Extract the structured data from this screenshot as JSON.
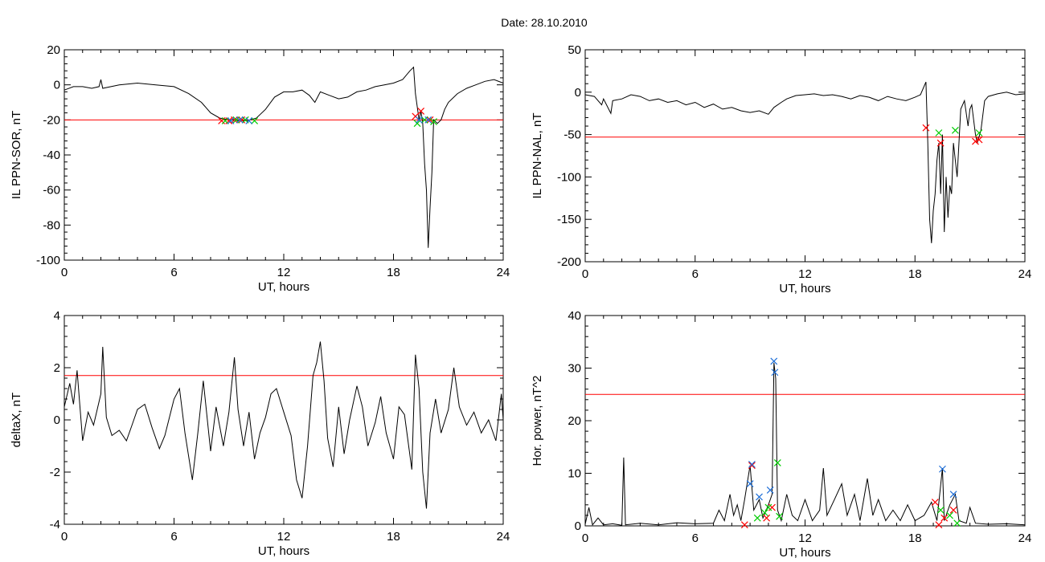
{
  "figure": {
    "title": "Date:  28.10.2010",
    "threshold_color": "#ff0000",
    "trace_color": "#000000",
    "marker_colors": {
      "red": "#ff0000",
      "green": "#00cc00",
      "blue": "#1f6fd8"
    }
  },
  "chart_data": [
    {
      "type": "line",
      "xlabel": "UT, hours",
      "ylabel": "IL PPN-SOR, nT",
      "xlim": [
        0,
        24
      ],
      "ylim": [
        -100,
        20
      ],
      "xticks": [
        0,
        6,
        12,
        18,
        24
      ],
      "yticks": [
        20,
        0,
        -20,
        -40,
        -60,
        -80,
        -100
      ],
      "threshold": -20,
      "trace": [
        [
          0,
          -3
        ],
        [
          0.5,
          -1
        ],
        [
          1,
          -1
        ],
        [
          1.5,
          -2
        ],
        [
          1.9,
          -1
        ],
        [
          2,
          3
        ],
        [
          2.1,
          -2
        ],
        [
          3,
          0
        ],
        [
          4,
          1
        ],
        [
          5,
          0
        ],
        [
          6,
          -1
        ],
        [
          6.8,
          -5
        ],
        [
          7.5,
          -10
        ],
        [
          8,
          -16
        ],
        [
          8.5,
          -19
        ],
        [
          9,
          -20
        ],
        [
          10,
          -20.5
        ],
        [
          10.5,
          -19
        ],
        [
          11,
          -14
        ],
        [
          11.5,
          -7
        ],
        [
          12,
          -4
        ],
        [
          12.5,
          -4
        ],
        [
          13,
          -3
        ],
        [
          13.4,
          -6
        ],
        [
          13.7,
          -10
        ],
        [
          14,
          -4
        ],
        [
          14.5,
          -6
        ],
        [
          15,
          -8
        ],
        [
          15.5,
          -7
        ],
        [
          16,
          -4
        ],
        [
          16.5,
          -3
        ],
        [
          17,
          -1
        ],
        [
          17.5,
          0
        ],
        [
          18,
          1
        ],
        [
          18.5,
          3
        ],
        [
          18.9,
          8
        ],
        [
          19.1,
          10
        ],
        [
          19.2,
          -5
        ],
        [
          19.4,
          -20
        ],
        [
          19.5,
          -15
        ],
        [
          19.6,
          -22
        ],
        [
          19.7,
          -45
        ],
        [
          19.8,
          -60
        ],
        [
          19.9,
          -93
        ],
        [
          20,
          -70
        ],
        [
          20.1,
          -50
        ],
        [
          20.2,
          -20
        ],
        [
          20.4,
          -22
        ],
        [
          20.6,
          -20
        ],
        [
          20.8,
          -14
        ],
        [
          21,
          -10
        ],
        [
          21.5,
          -5
        ],
        [
          22,
          -2
        ],
        [
          22.5,
          0
        ],
        [
          23,
          2
        ],
        [
          23.5,
          3
        ],
        [
          24,
          1
        ]
      ],
      "markers": {
        "red": [
          [
            8.6,
            -20.5
          ],
          [
            9,
            -20.5
          ],
          [
            9.3,
            -20
          ],
          [
            9.7,
            -20
          ],
          [
            19.2,
            -18
          ],
          [
            19.5,
            -15
          ],
          [
            20,
            -20
          ]
        ],
        "green": [
          [
            8.8,
            -20.5
          ],
          [
            9.4,
            -20
          ],
          [
            9.9,
            -20
          ],
          [
            10.4,
            -20.5
          ],
          [
            19.3,
            -22
          ],
          [
            19.7,
            -20
          ],
          [
            20.2,
            -21
          ]
        ],
        "blue": [
          [
            9.1,
            -20.5
          ],
          [
            9.6,
            -20
          ],
          [
            10.1,
            -20.5
          ],
          [
            19.4,
            -20
          ],
          [
            19.9,
            -20
          ]
        ]
      }
    },
    {
      "type": "line",
      "xlabel": "UT, hours",
      "ylabel": "IL PPN-NAL, nT",
      "xlim": [
        0,
        24
      ],
      "ylim": [
        -200,
        50
      ],
      "xticks": [
        0,
        6,
        12,
        18,
        24
      ],
      "yticks": [
        50,
        0,
        -50,
        -100,
        -150,
        -200
      ],
      "threshold": -53,
      "trace": [
        [
          0,
          -3
        ],
        [
          0.5,
          -5
        ],
        [
          0.9,
          -15
        ],
        [
          1,
          -8
        ],
        [
          1.4,
          -25
        ],
        [
          1.5,
          -10
        ],
        [
          2,
          -8
        ],
        [
          2.5,
          -3
        ],
        [
          3,
          -5
        ],
        [
          3.5,
          -10
        ],
        [
          4,
          -8
        ],
        [
          4.5,
          -12
        ],
        [
          5,
          -10
        ],
        [
          5.5,
          -15
        ],
        [
          6,
          -12
        ],
        [
          6.5,
          -18
        ],
        [
          7,
          -14
        ],
        [
          7.5,
          -20
        ],
        [
          8,
          -18
        ],
        [
          8.5,
          -22
        ],
        [
          9,
          -24
        ],
        [
          9.5,
          -22
        ],
        [
          10,
          -26
        ],
        [
          10.3,
          -18
        ],
        [
          10.7,
          -12
        ],
        [
          11,
          -8
        ],
        [
          11.5,
          -4
        ],
        [
          12,
          -3
        ],
        [
          12.5,
          -2
        ],
        [
          13,
          -4
        ],
        [
          13.5,
          -3
        ],
        [
          14,
          -5
        ],
        [
          14.5,
          -8
        ],
        [
          15,
          -4
        ],
        [
          15.5,
          -6
        ],
        [
          16,
          -10
        ],
        [
          16.5,
          -5
        ],
        [
          17,
          -8
        ],
        [
          17.5,
          -10
        ],
        [
          18,
          -6
        ],
        [
          18.3,
          -3
        ],
        [
          18.6,
          12
        ],
        [
          18.7,
          -60
        ],
        [
          18.8,
          -150
        ],
        [
          18.9,
          -178
        ],
        [
          19,
          -140
        ],
        [
          19.1,
          -120
        ],
        [
          19.2,
          -80
        ],
        [
          19.3,
          -60
        ],
        [
          19.4,
          -120
        ],
        [
          19.5,
          -50
        ],
        [
          19.6,
          -165
        ],
        [
          19.7,
          -100
        ],
        [
          19.8,
          -148
        ],
        [
          19.9,
          -110
        ],
        [
          20,
          -120
        ],
        [
          20.1,
          -60
        ],
        [
          20.3,
          -100
        ],
        [
          20.5,
          -20
        ],
        [
          20.7,
          -10
        ],
        [
          20.9,
          -40
        ],
        [
          21,
          -20
        ],
        [
          21.1,
          -15
        ],
        [
          21.3,
          -50
        ],
        [
          21.4,
          -60
        ],
        [
          21.6,
          -45
        ],
        [
          21.8,
          -10
        ],
        [
          22,
          -5
        ],
        [
          22.5,
          -2
        ],
        [
          23,
          0
        ],
        [
          23.5,
          -3
        ],
        [
          24,
          -2
        ]
      ],
      "markers": {
        "red": [
          [
            18.6,
            -42
          ],
          [
            19.4,
            -60
          ],
          [
            21.3,
            -58
          ],
          [
            21.5,
            -56
          ]
        ],
        "green": [
          [
            19.3,
            -48
          ],
          [
            20.2,
            -45
          ],
          [
            21.5,
            -48
          ]
        ],
        "blue": []
      }
    },
    {
      "type": "line",
      "xlabel": "UT, hours",
      "ylabel": "deltaX, nT",
      "xlim": [
        0,
        24
      ],
      "ylim": [
        -4,
        4
      ],
      "xticks": [
        0,
        6,
        12,
        18,
        24
      ],
      "yticks": [
        4,
        2,
        0,
        -2,
        -4
      ],
      "threshold": 1.7,
      "trace": [
        [
          0,
          0.5
        ],
        [
          0.3,
          1.4
        ],
        [
          0.5,
          0.6
        ],
        [
          0.7,
          1.9
        ],
        [
          1,
          -0.8
        ],
        [
          1.3,
          0.3
        ],
        [
          1.6,
          -0.2
        ],
        [
          2,
          1
        ],
        [
          2.1,
          2.8
        ],
        [
          2.3,
          0.1
        ],
        [
          2.6,
          -0.6
        ],
        [
          3,
          -0.4
        ],
        [
          3.4,
          -0.8
        ],
        [
          3.7,
          -0.2
        ],
        [
          4,
          0.4
        ],
        [
          4.4,
          0.6
        ],
        [
          4.8,
          -0.3
        ],
        [
          5.2,
          -1.1
        ],
        [
          5.5,
          -0.6
        ],
        [
          6,
          0.8
        ],
        [
          6.3,
          1.2
        ],
        [
          6.6,
          -0.5
        ],
        [
          7,
          -2.3
        ],
        [
          7.3,
          -0.5
        ],
        [
          7.6,
          1.5
        ],
        [
          8,
          -1.2
        ],
        [
          8.3,
          0.5
        ],
        [
          8.7,
          -1
        ],
        [
          9,
          0.3
        ],
        [
          9.3,
          2.4
        ],
        [
          9.5,
          0.4
        ],
        [
          9.8,
          -1
        ],
        [
          10.1,
          0.3
        ],
        [
          10.4,
          -1.5
        ],
        [
          10.7,
          -0.5
        ],
        [
          11,
          0.1
        ],
        [
          11.3,
          1
        ],
        [
          11.6,
          1.2
        ],
        [
          12,
          0.3
        ],
        [
          12.4,
          -0.6
        ],
        [
          12.7,
          -2.3
        ],
        [
          13,
          -3
        ],
        [
          13.3,
          -1
        ],
        [
          13.6,
          1.7
        ],
        [
          13.8,
          2.2
        ],
        [
          14,
          3
        ],
        [
          14.2,
          1.5
        ],
        [
          14.4,
          -0.7
        ],
        [
          14.7,
          -1.8
        ],
        [
          15,
          0.5
        ],
        [
          15.3,
          -1.3
        ],
        [
          15.6,
          0
        ],
        [
          16,
          1.3
        ],
        [
          16.3,
          0.5
        ],
        [
          16.6,
          -1
        ],
        [
          17,
          -0.1
        ],
        [
          17.3,
          0.9
        ],
        [
          17.6,
          -0.5
        ],
        [
          18,
          -1.5
        ],
        [
          18.3,
          0.5
        ],
        [
          18.6,
          0.2
        ],
        [
          19,
          -1.9
        ],
        [
          19.2,
          2.5
        ],
        [
          19.4,
          1.2
        ],
        [
          19.6,
          -2
        ],
        [
          19.8,
          -3.4
        ],
        [
          20,
          -0.5
        ],
        [
          20.3,
          0.8
        ],
        [
          20.6,
          -0.5
        ],
        [
          21,
          0.4
        ],
        [
          21.3,
          2
        ],
        [
          21.6,
          0.5
        ],
        [
          22,
          -0.2
        ],
        [
          22.4,
          0.3
        ],
        [
          22.8,
          -0.5
        ],
        [
          23.2,
          0
        ],
        [
          23.6,
          -0.8
        ],
        [
          23.9,
          1
        ],
        [
          24,
          0
        ]
      ],
      "markers": {
        "red": [],
        "green": [],
        "blue": []
      }
    },
    {
      "type": "line",
      "xlabel": "UT, hours",
      "ylabel": "Hor. power, nT^2",
      "xlim": [
        0,
        24
      ],
      "ylim": [
        0,
        40
      ],
      "xticks": [
        0,
        6,
        12,
        18,
        24
      ],
      "yticks": [
        40,
        30,
        20,
        10,
        0
      ],
      "threshold": 25,
      "trace": [
        [
          0,
          0.3
        ],
        [
          0.2,
          3.5
        ],
        [
          0.4,
          0.2
        ],
        [
          0.7,
          1.5
        ],
        [
          1,
          0.2
        ],
        [
          1.5,
          0.4
        ],
        [
          2,
          0.1
        ],
        [
          2.1,
          13
        ],
        [
          2.2,
          0.2
        ],
        [
          3,
          0.5
        ],
        [
          4,
          0.2
        ],
        [
          5,
          0.6
        ],
        [
          6,
          0.4
        ],
        [
          7,
          0.5
        ],
        [
          7.3,
          3
        ],
        [
          7.6,
          1
        ],
        [
          7.9,
          6
        ],
        [
          8.1,
          2
        ],
        [
          8.3,
          4
        ],
        [
          8.5,
          1
        ],
        [
          8.7,
          5
        ],
        [
          9,
          11.5
        ],
        [
          9.2,
          3
        ],
        [
          9.5,
          5
        ],
        [
          9.7,
          1.5
        ],
        [
          10,
          4
        ],
        [
          10.2,
          6
        ],
        [
          10.3,
          31
        ],
        [
          10.4,
          28
        ],
        [
          10.5,
          3
        ],
        [
          10.7,
          1
        ],
        [
          11,
          6
        ],
        [
          11.3,
          2
        ],
        [
          11.6,
          1
        ],
        [
          12,
          5
        ],
        [
          12.4,
          1
        ],
        [
          12.8,
          3
        ],
        [
          13,
          11
        ],
        [
          13.2,
          2
        ],
        [
          13.6,
          5
        ],
        [
          14,
          8
        ],
        [
          14.3,
          2
        ],
        [
          14.7,
          6
        ],
        [
          15,
          1
        ],
        [
          15.4,
          9
        ],
        [
          15.7,
          2
        ],
        [
          16,
          5
        ],
        [
          16.4,
          1
        ],
        [
          16.8,
          3
        ],
        [
          17.2,
          1
        ],
        [
          17.6,
          4
        ],
        [
          18,
          1
        ],
        [
          18.5,
          2
        ],
        [
          18.9,
          4.5
        ],
        [
          19.2,
          1
        ],
        [
          19.5,
          11
        ],
        [
          19.6,
          1
        ],
        [
          19.9,
          4
        ],
        [
          20.2,
          6
        ],
        [
          20.4,
          1
        ],
        [
          20.8,
          0.5
        ],
        [
          21,
          3.5
        ],
        [
          21.3,
          0.5
        ],
        [
          22,
          0.3
        ],
        [
          23,
          0.4
        ],
        [
          24,
          0.2
        ]
      ],
      "markers": {
        "red": [
          [
            8.7,
            0.2
          ],
          [
            9.1,
            11.5
          ],
          [
            9.9,
            1.5
          ],
          [
            10.2,
            3.5
          ],
          [
            19.1,
            4.5
          ],
          [
            19.3,
            0.2
          ],
          [
            19.6,
            1.5
          ],
          [
            20.1,
            3
          ]
        ],
        "green": [
          [
            9.4,
            1.5
          ],
          [
            9.8,
            2.5
          ],
          [
            10,
            3.5
          ],
          [
            10.5,
            12
          ],
          [
            10.6,
            1.8
          ],
          [
            19.4,
            3
          ],
          [
            19.9,
            2
          ],
          [
            20.3,
            0.5
          ]
        ],
        "blue": [
          [
            9.0,
            8
          ],
          [
            9.1,
            11.7
          ],
          [
            9.5,
            5.5
          ],
          [
            10.1,
            6.8
          ],
          [
            10.3,
            31.3
          ],
          [
            10.35,
            29.2
          ],
          [
            19.5,
            10.8
          ],
          [
            20.1,
            6
          ]
        ]
      }
    }
  ]
}
